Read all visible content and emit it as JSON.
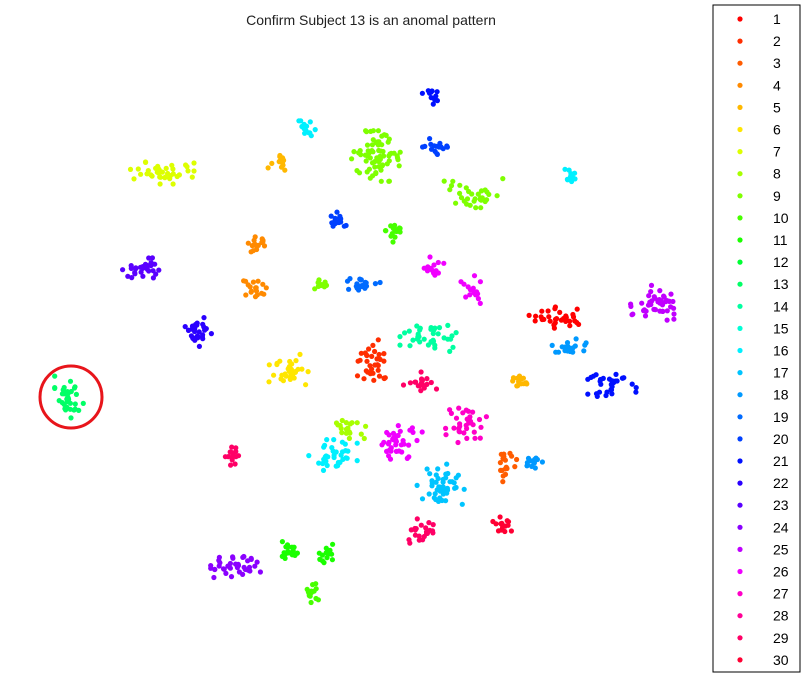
{
  "chart_data": {
    "type": "scatter",
    "title": "Confirm Subject 13 is an anomal pattern",
    "xlabel": "",
    "ylabel": "",
    "axes_visible": false,
    "grid": false,
    "legend_placement": "right",
    "highlight": {
      "label": "13",
      "shape": "circle",
      "color": "#e8151b"
    },
    "series": [
      {
        "name": "1",
        "color": "#ff0000",
        "clusters": [
          {
            "cx": 560,
            "cy": 318,
            "rx": 30,
            "ry": 10,
            "n": 32
          }
        ]
      },
      {
        "name": "2",
        "color": "#ff2e00",
        "clusters": [
          {
            "cx": 373,
            "cy": 362,
            "rx": 15,
            "ry": 22,
            "n": 34
          }
        ]
      },
      {
        "name": "3",
        "color": "#ff5c00",
        "clusters": [
          {
            "cx": 506,
            "cy": 464,
            "rx": 10,
            "ry": 16,
            "n": 18
          }
        ]
      },
      {
        "name": "4",
        "color": "#ff8a00",
        "clusters": [
          {
            "cx": 257,
            "cy": 242,
            "rx": 10,
            "ry": 9,
            "n": 15
          },
          {
            "cx": 255,
            "cy": 289,
            "rx": 12,
            "ry": 11,
            "n": 18
          }
        ]
      },
      {
        "name": "5",
        "color": "#ffb800",
        "clusters": [
          {
            "cx": 278,
            "cy": 162,
            "rx": 9,
            "ry": 11,
            "n": 15
          },
          {
            "cx": 519,
            "cy": 382,
            "rx": 12,
            "ry": 7,
            "n": 16
          }
        ]
      },
      {
        "name": "6",
        "color": "#ffe600",
        "clusters": [
          {
            "cx": 291,
            "cy": 372,
            "rx": 20,
            "ry": 17,
            "n": 34
          }
        ]
      },
      {
        "name": "7",
        "color": "#ddff00",
        "clusters": [
          {
            "cx": 161,
            "cy": 173,
            "rx": 30,
            "ry": 10,
            "n": 40
          }
        ]
      },
      {
        "name": "8",
        "color": "#a8ff00",
        "clusters": [
          {
            "cx": 348,
            "cy": 428,
            "rx": 16,
            "ry": 12,
            "n": 20
          }
        ]
      },
      {
        "name": "9",
        "color": "#7fff00",
        "clusters": [
          {
            "cx": 378,
            "cy": 156,
            "rx": 24,
            "ry": 23,
            "n": 70
          },
          {
            "cx": 472,
            "cy": 194,
            "rx": 28,
            "ry": 14,
            "n": 32
          },
          {
            "cx": 321,
            "cy": 285,
            "rx": 9,
            "ry": 9,
            "n": 12
          }
        ]
      },
      {
        "name": "10",
        "color": "#47ff00",
        "clusters": [
          {
            "cx": 395,
            "cy": 231,
            "rx": 9,
            "ry": 10,
            "n": 15
          },
          {
            "cx": 312,
            "cy": 592,
            "rx": 8,
            "ry": 10,
            "n": 15
          }
        ]
      },
      {
        "name": "11",
        "color": "#1aff00",
        "clusters": [
          {
            "cx": 288,
            "cy": 549,
            "rx": 12,
            "ry": 10,
            "n": 18
          },
          {
            "cx": 326,
            "cy": 552,
            "rx": 9,
            "ry": 10,
            "n": 14
          }
        ]
      },
      {
        "name": "12",
        "color": "#00ff33",
        "clusters": []
      },
      {
        "name": "13",
        "color": "#00ff66",
        "clusters": [
          {
            "cx": 69,
            "cy": 397,
            "rx": 13,
            "ry": 19,
            "n": 34
          }
        ]
      },
      {
        "name": "14",
        "color": "#00ffa0",
        "clusters": [
          {
            "cx": 433,
            "cy": 338,
            "rx": 30,
            "ry": 14,
            "n": 38
          }
        ]
      },
      {
        "name": "15",
        "color": "#00ffd6",
        "clusters": []
      },
      {
        "name": "16",
        "color": "#00f0ff",
        "clusters": [
          {
            "cx": 308,
            "cy": 128,
            "rx": 11,
            "ry": 7,
            "n": 14
          },
          {
            "cx": 570,
            "cy": 176,
            "rx": 7,
            "ry": 10,
            "n": 12
          },
          {
            "cx": 333,
            "cy": 455,
            "rx": 22,
            "ry": 14,
            "n": 34
          }
        ]
      },
      {
        "name": "17",
        "color": "#00c4ff",
        "clusters": [
          {
            "cx": 440,
            "cy": 485,
            "rx": 22,
            "ry": 19,
            "n": 46
          }
        ]
      },
      {
        "name": "18",
        "color": "#0099ff",
        "clusters": [
          {
            "cx": 570,
            "cy": 347,
            "rx": 17,
            "ry": 9,
            "n": 22
          },
          {
            "cx": 533,
            "cy": 462,
            "rx": 11,
            "ry": 9,
            "n": 14
          }
        ]
      },
      {
        "name": "19",
        "color": "#006bff",
        "clusters": [
          {
            "cx": 362,
            "cy": 285,
            "rx": 17,
            "ry": 8,
            "n": 20
          }
        ]
      },
      {
        "name": "20",
        "color": "#0040ff",
        "clusters": [
          {
            "cx": 338,
            "cy": 222,
            "rx": 11,
            "ry": 9,
            "n": 16
          },
          {
            "cx": 438,
            "cy": 146,
            "rx": 14,
            "ry": 9,
            "n": 18
          }
        ]
      },
      {
        "name": "21",
        "color": "#0010ff",
        "clusters": [
          {
            "cx": 431,
            "cy": 96,
            "rx": 8,
            "ry": 9,
            "n": 13
          },
          {
            "cx": 612,
            "cy": 387,
            "rx": 22,
            "ry": 13,
            "n": 32
          }
        ]
      },
      {
        "name": "22",
        "color": "#2a00ff",
        "clusters": [
          {
            "cx": 194,
            "cy": 331,
            "rx": 17,
            "ry": 14,
            "n": 30
          }
        ]
      },
      {
        "name": "23",
        "color": "#5a00ff",
        "clusters": [
          {
            "cx": 139,
            "cy": 268,
            "rx": 18,
            "ry": 11,
            "n": 28
          }
        ]
      },
      {
        "name": "24",
        "color": "#8a00ff",
        "clusters": [
          {
            "cx": 234,
            "cy": 566,
            "rx": 24,
            "ry": 12,
            "n": 38
          }
        ]
      },
      {
        "name": "25",
        "color": "#c000ff",
        "clusters": [
          {
            "cx": 657,
            "cy": 303,
            "rx": 24,
            "ry": 16,
            "n": 46
          }
        ]
      },
      {
        "name": "26",
        "color": "#f000ff",
        "clusters": [
          {
            "cx": 398,
            "cy": 441,
            "rx": 22,
            "ry": 19,
            "n": 40
          },
          {
            "cx": 472,
            "cy": 290,
            "rx": 10,
            "ry": 13,
            "n": 15
          },
          {
            "cx": 433,
            "cy": 268,
            "rx": 10,
            "ry": 10,
            "n": 14
          }
        ]
      },
      {
        "name": "27",
        "color": "#ff00c8",
        "clusters": [
          {
            "cx": 465,
            "cy": 425,
            "rx": 20,
            "ry": 16,
            "n": 34
          }
        ]
      },
      {
        "name": "28",
        "color": "#ff0096",
        "clusters": []
      },
      {
        "name": "29",
        "color": "#ff0066",
        "clusters": [
          {
            "cx": 420,
            "cy": 383,
            "rx": 15,
            "ry": 10,
            "n": 20
          },
          {
            "cx": 234,
            "cy": 457,
            "rx": 10,
            "ry": 9,
            "n": 14
          },
          {
            "cx": 421,
            "cy": 531,
            "rx": 14,
            "ry": 11,
            "n": 22
          }
        ]
      },
      {
        "name": "30",
        "color": "#ff0033",
        "clusters": [
          {
            "cx": 505,
            "cy": 524,
            "rx": 11,
            "ry": 10,
            "n": 16
          }
        ]
      }
    ]
  }
}
